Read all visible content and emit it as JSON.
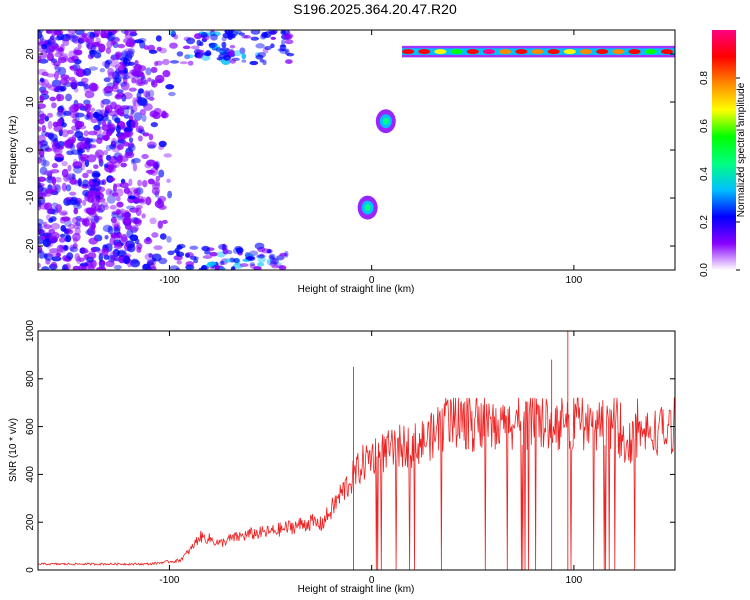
{
  "title": "S196.2025.364.20.47.R20",
  "chart_data": [
    {
      "type": "heatmap",
      "xlabel": "Height of straight line (km)",
      "ylabel": "Frequency (Hz)",
      "xlim": [
        -165,
        150
      ],
      "ylim": [
        -25,
        25
      ],
      "xticks": [
        -100,
        0,
        100
      ],
      "yticks": [
        -20,
        -10,
        0,
        10,
        20
      ],
      "colorbar": {
        "label": "Normalized spectral amplitude",
        "range": [
          0,
          1
        ],
        "ticks": [
          0.0,
          0.2,
          0.4,
          0.6,
          0.8
        ],
        "colors": [
          "#ffffff",
          "#8800ff",
          "#0000ff",
          "#00c0ff",
          "#00ff80",
          "#00ff00",
          "#ffff00",
          "#ff8800",
          "#ff0000",
          "#ff0080"
        ]
      },
      "features": [
        {
          "name": "tonal line",
          "x_range": [
            15,
            150
          ],
          "frequency_hz": 20.5,
          "amplitude": 0.9
        },
        {
          "name": "blob",
          "x": 7,
          "frequency_hz": 6,
          "amplitude": 0.45
        },
        {
          "name": "blob",
          "x": -2,
          "frequency_hz": -12,
          "amplitude": 0.45
        },
        {
          "name": "low-height noise",
          "x_range": [
            -165,
            -100
          ],
          "frequency_range": [
            -25,
            25
          ],
          "amplitude": 0.15
        }
      ]
    },
    {
      "type": "line",
      "xlabel": "Height of straight line (km)",
      "ylabel": "SNR (10 * v/v)",
      "xlim": [
        -165,
        150
      ],
      "ylim": [
        0,
        1000
      ],
      "xticks": [
        -100,
        0,
        100
      ],
      "yticks": [
        0,
        200,
        400,
        600,
        800,
        1000
      ],
      "color": "#ee2222",
      "series": [
        {
          "name": "SNR",
          "x": [
            -165,
            -140,
            -110,
            -95,
            -90,
            -85,
            -80,
            -75,
            -70,
            -60,
            -50,
            -40,
            -35,
            -30,
            -25,
            -20,
            -15,
            -10,
            -5,
            0,
            5,
            10,
            15,
            20,
            25,
            30,
            35,
            40,
            45,
            50,
            60,
            70,
            80,
            90,
            95,
            100,
            110,
            120,
            125,
            130,
            140,
            150
          ],
          "values": [
            25,
            25,
            25,
            40,
            80,
            140,
            130,
            110,
            130,
            150,
            160,
            180,
            190,
            200,
            190,
            250,
            320,
            380,
            440,
            480,
            490,
            500,
            520,
            520,
            540,
            560,
            600,
            610,
            620,
            600,
            590,
            610,
            600,
            620,
            590,
            610,
            600,
            620,
            520,
            560,
            580,
            590
          ]
        }
      ],
      "spikes": [
        {
          "x": -9,
          "value": 850
        },
        {
          "x": 97,
          "value": 1000
        },
        {
          "x": 89,
          "value": 880
        }
      ]
    }
  ]
}
